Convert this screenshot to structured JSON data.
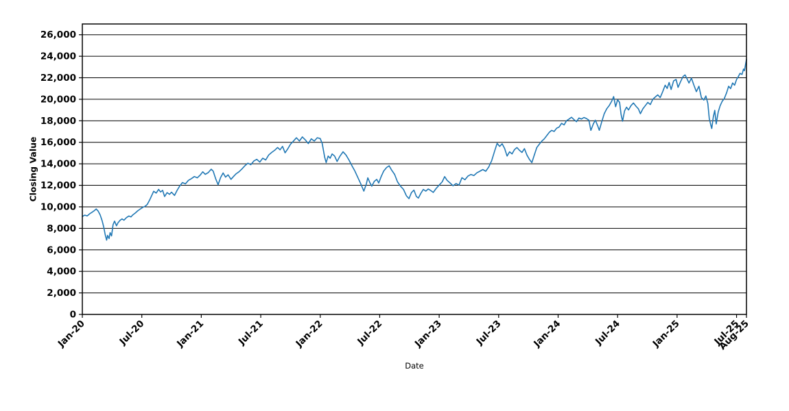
{
  "figure": {
    "background": "#ffffff",
    "text_color": "#000000",
    "grid_color": "#000000",
    "border_color": "#000000"
  },
  "chart_data": {
    "type": "line",
    "title": "",
    "xlabel": "Date",
    "ylabel": "Closing Value",
    "legend": "none",
    "grid": "horizontal-only",
    "line_color": "#1f77b4",
    "line_width": 1.6,
    "xlim_months_from_jan2020": [
      0,
      67
    ],
    "ylim": [
      0,
      27000
    ],
    "x_ticks": [
      {
        "m": 0,
        "label": "Jan-20"
      },
      {
        "m": 6,
        "label": "Jul-20"
      },
      {
        "m": 12,
        "label": "Jan-21"
      },
      {
        "m": 18,
        "label": "Jul-21"
      },
      {
        "m": 24,
        "label": "Jan-22"
      },
      {
        "m": 30,
        "label": "Jul-22"
      },
      {
        "m": 36,
        "label": "Jan-23"
      },
      {
        "m": 42,
        "label": "Jul-23"
      },
      {
        "m": 48,
        "label": "Jan-24"
      },
      {
        "m": 54,
        "label": "Jul-24"
      },
      {
        "m": 60,
        "label": "Jan-25"
      },
      {
        "m": 66,
        "label": "Jul-25"
      },
      {
        "m": 67,
        "label": "Aug-25"
      }
    ],
    "y_ticks": [
      {
        "v": 0,
        "label": "0"
      },
      {
        "v": 2000,
        "label": "2,000"
      },
      {
        "v": 4000,
        "label": "4,000"
      },
      {
        "v": 6000,
        "label": "6,000"
      },
      {
        "v": 8000,
        "label": "8,000"
      },
      {
        "v": 10000,
        "label": "10,000"
      },
      {
        "v": 12000,
        "label": "12,000"
      },
      {
        "v": 14000,
        "label": "14,000"
      },
      {
        "v": 16000,
        "label": "16,000"
      },
      {
        "v": 18000,
        "label": "18,000"
      },
      {
        "v": 20000,
        "label": "20,000"
      },
      {
        "v": 22000,
        "label": "22,000"
      },
      {
        "v": 24000,
        "label": "24,000"
      },
      {
        "v": 26000,
        "label": "26,000"
      }
    ],
    "series": [
      {
        "name": "Closing Value",
        "x_unit": "months since Jan-2020 (fractional = day of month)",
        "points": [
          [
            0,
            9100
          ],
          [
            0.25,
            9230
          ],
          [
            0.5,
            9160
          ],
          [
            0.75,
            9360
          ],
          [
            1,
            9510
          ],
          [
            1.2,
            9640
          ],
          [
            1.4,
            9800
          ],
          [
            1.6,
            9600
          ],
          [
            1.8,
            9250
          ],
          [
            2,
            8700
          ],
          [
            2.15,
            8150
          ],
          [
            2.3,
            7450
          ],
          [
            2.45,
            6900
          ],
          [
            2.55,
            7350
          ],
          [
            2.7,
            7050
          ],
          [
            2.8,
            7600
          ],
          [
            2.95,
            7300
          ],
          [
            3.1,
            8350
          ],
          [
            3.25,
            8670
          ],
          [
            3.45,
            8240
          ],
          [
            3.6,
            8520
          ],
          [
            3.8,
            8740
          ],
          [
            4,
            8880
          ],
          [
            4.2,
            8760
          ],
          [
            4.45,
            9000
          ],
          [
            4.7,
            9150
          ],
          [
            4.9,
            9060
          ],
          [
            5.1,
            9260
          ],
          [
            5.35,
            9430
          ],
          [
            5.6,
            9640
          ],
          [
            5.85,
            9800
          ],
          [
            6.1,
            9950
          ],
          [
            6.35,
            10060
          ],
          [
            6.55,
            10220
          ],
          [
            6.8,
            10650
          ],
          [
            7,
            11050
          ],
          [
            7.2,
            11450
          ],
          [
            7.45,
            11280
          ],
          [
            7.7,
            11620
          ],
          [
            7.9,
            11380
          ],
          [
            8.1,
            11540
          ],
          [
            8.3,
            10960
          ],
          [
            8.55,
            11320
          ],
          [
            8.8,
            11160
          ],
          [
            9,
            11360
          ],
          [
            9.3,
            11060
          ],
          [
            9.55,
            11520
          ],
          [
            9.8,
            11900
          ],
          [
            10.1,
            12260
          ],
          [
            10.4,
            12140
          ],
          [
            10.7,
            12460
          ],
          [
            11,
            12620
          ],
          [
            11.3,
            12820
          ],
          [
            11.6,
            12700
          ],
          [
            11.9,
            12960
          ],
          [
            12.15,
            13260
          ],
          [
            12.4,
            13020
          ],
          [
            12.7,
            13180
          ],
          [
            13,
            13500
          ],
          [
            13.2,
            13320
          ],
          [
            13.45,
            12620
          ],
          [
            13.7,
            12060
          ],
          [
            13.95,
            12720
          ],
          [
            14.2,
            13150
          ],
          [
            14.45,
            12760
          ],
          [
            14.7,
            12980
          ],
          [
            15,
            12560
          ],
          [
            15.25,
            12820
          ],
          [
            15.5,
            13060
          ],
          [
            15.8,
            13260
          ],
          [
            16.1,
            13520
          ],
          [
            16.4,
            13820
          ],
          [
            16.7,
            14060
          ],
          [
            17,
            13920
          ],
          [
            17.3,
            14260
          ],
          [
            17.6,
            14420
          ],
          [
            17.9,
            14160
          ],
          [
            18.2,
            14520
          ],
          [
            18.5,
            14360
          ],
          [
            18.8,
            14820
          ],
          [
            19.1,
            15060
          ],
          [
            19.4,
            15260
          ],
          [
            19.7,
            15520
          ],
          [
            19.95,
            15300
          ],
          [
            20.2,
            15620
          ],
          [
            20.45,
            15020
          ],
          [
            20.7,
            15360
          ],
          [
            21,
            15820
          ],
          [
            21.3,
            16120
          ],
          [
            21.6,
            16420
          ],
          [
            21.9,
            16120
          ],
          [
            22.2,
            16500
          ],
          [
            22.5,
            16220
          ],
          [
            22.8,
            15880
          ],
          [
            23.1,
            16320
          ],
          [
            23.4,
            16120
          ],
          [
            23.7,
            16420
          ],
          [
            24,
            16350
          ],
          [
            24.2,
            15900
          ],
          [
            24.45,
            14620
          ],
          [
            24.6,
            14120
          ],
          [
            24.8,
            14720
          ],
          [
            25,
            14520
          ],
          [
            25.2,
            14920
          ],
          [
            25.45,
            14720
          ],
          [
            25.7,
            14220
          ],
          [
            26,
            14720
          ],
          [
            26.3,
            15120
          ],
          [
            26.6,
            14820
          ],
          [
            26.9,
            14360
          ],
          [
            27.2,
            13820
          ],
          [
            27.5,
            13320
          ],
          [
            27.8,
            12720
          ],
          [
            28.1,
            12120
          ],
          [
            28.4,
            11460
          ],
          [
            28.65,
            12120
          ],
          [
            28.8,
            12700
          ],
          [
            29,
            12260
          ],
          [
            29.2,
            11920
          ],
          [
            29.45,
            12360
          ],
          [
            29.7,
            12560
          ],
          [
            29.9,
            12220
          ],
          [
            30.15,
            12820
          ],
          [
            30.4,
            13320
          ],
          [
            30.7,
            13660
          ],
          [
            30.95,
            13820
          ],
          [
            31.2,
            13420
          ],
          [
            31.5,
            13020
          ],
          [
            31.8,
            12320
          ],
          [
            32.1,
            11920
          ],
          [
            32.4,
            11620
          ],
          [
            32.7,
            11020
          ],
          [
            32.95,
            10760
          ],
          [
            33.2,
            11320
          ],
          [
            33.45,
            11560
          ],
          [
            33.7,
            10960
          ],
          [
            33.9,
            10820
          ],
          [
            34.15,
            11260
          ],
          [
            34.4,
            11620
          ],
          [
            34.65,
            11460
          ],
          [
            34.9,
            11660
          ],
          [
            35.15,
            11520
          ],
          [
            35.4,
            11340
          ],
          [
            35.7,
            11720
          ],
          [
            36,
            12020
          ],
          [
            36.3,
            12320
          ],
          [
            36.55,
            12810
          ],
          [
            36.8,
            12460
          ],
          [
            37.1,
            12220
          ],
          [
            37.4,
            11960
          ],
          [
            37.7,
            12160
          ],
          [
            38,
            12020
          ],
          [
            38.3,
            12710
          ],
          [
            38.6,
            12520
          ],
          [
            38.9,
            12860
          ],
          [
            39.2,
            13010
          ],
          [
            39.5,
            12910
          ],
          [
            39.8,
            13160
          ],
          [
            40.1,
            13310
          ],
          [
            40.4,
            13470
          ],
          [
            40.7,
            13310
          ],
          [
            41,
            13710
          ],
          [
            41.3,
            14300
          ],
          [
            41.6,
            15200
          ],
          [
            41.85,
            15900
          ],
          [
            42.1,
            15620
          ],
          [
            42.35,
            15860
          ],
          [
            42.6,
            15420
          ],
          [
            42.85,
            14720
          ],
          [
            43.1,
            15120
          ],
          [
            43.35,
            14920
          ],
          [
            43.6,
            15320
          ],
          [
            43.85,
            15510
          ],
          [
            44.1,
            15260
          ],
          [
            44.35,
            15060
          ],
          [
            44.6,
            15410
          ],
          [
            44.85,
            14820
          ],
          [
            45.1,
            14420
          ],
          [
            45.35,
            14110
          ],
          [
            45.6,
            14820
          ],
          [
            45.85,
            15510
          ],
          [
            46.1,
            15820
          ],
          [
            46.35,
            16110
          ],
          [
            46.6,
            16320
          ],
          [
            46.85,
            16620
          ],
          [
            47.1,
            16920
          ],
          [
            47.35,
            17110
          ],
          [
            47.6,
            17010
          ],
          [
            47.85,
            17310
          ],
          [
            48.1,
            17420
          ],
          [
            48.35,
            17760
          ],
          [
            48.6,
            17620
          ],
          [
            48.85,
            18010
          ],
          [
            49.1,
            18160
          ],
          [
            49.35,
            18330
          ],
          [
            49.6,
            18110
          ],
          [
            49.85,
            17910
          ],
          [
            50.1,
            18260
          ],
          [
            50.35,
            18160
          ],
          [
            50.6,
            18310
          ],
          [
            50.85,
            18210
          ],
          [
            51.1,
            18060
          ],
          [
            51.3,
            17110
          ],
          [
            51.55,
            17710
          ],
          [
            51.75,
            18060
          ],
          [
            52,
            17510
          ],
          [
            52.15,
            17120
          ],
          [
            52.4,
            17910
          ],
          [
            52.65,
            18660
          ],
          [
            52.9,
            19110
          ],
          [
            53.15,
            19410
          ],
          [
            53.4,
            19810
          ],
          [
            53.6,
            20250
          ],
          [
            53.8,
            19310
          ],
          [
            54,
            19960
          ],
          [
            54.2,
            19710
          ],
          [
            54.35,
            18610
          ],
          [
            54.5,
            17960
          ],
          [
            54.7,
            18910
          ],
          [
            54.9,
            19260
          ],
          [
            55.1,
            19010
          ],
          [
            55.35,
            19410
          ],
          [
            55.6,
            19660
          ],
          [
            55.85,
            19360
          ],
          [
            56.1,
            19110
          ],
          [
            56.3,
            18660
          ],
          [
            56.55,
            19110
          ],
          [
            56.8,
            19410
          ],
          [
            57.05,
            19710
          ],
          [
            57.3,
            19510
          ],
          [
            57.55,
            20010
          ],
          [
            57.8,
            20210
          ],
          [
            58.05,
            20410
          ],
          [
            58.3,
            20160
          ],
          [
            58.55,
            20710
          ],
          [
            58.8,
            21310
          ],
          [
            59,
            21010
          ],
          [
            59.2,
            21560
          ],
          [
            59.4,
            20910
          ],
          [
            59.65,
            21710
          ],
          [
            59.9,
            21840
          ],
          [
            60.1,
            21110
          ],
          [
            60.35,
            21630
          ],
          [
            60.6,
            22110
          ],
          [
            60.8,
            22270
          ],
          [
            61,
            21910
          ],
          [
            61.2,
            21510
          ],
          [
            61.45,
            21960
          ],
          [
            61.7,
            21310
          ],
          [
            61.95,
            20710
          ],
          [
            62.2,
            21210
          ],
          [
            62.45,
            20160
          ],
          [
            62.7,
            19930
          ],
          [
            62.9,
            20310
          ],
          [
            63.1,
            19610
          ],
          [
            63.25,
            18210
          ],
          [
            63.4,
            17610
          ],
          [
            63.5,
            17280
          ],
          [
            63.65,
            18330
          ],
          [
            63.8,
            18970
          ],
          [
            63.95,
            17710
          ],
          [
            64.15,
            18810
          ],
          [
            64.35,
            19410
          ],
          [
            64.55,
            19810
          ],
          [
            64.75,
            20040
          ],
          [
            65,
            20610
          ],
          [
            65.2,
            21210
          ],
          [
            65.4,
            20990
          ],
          [
            65.6,
            21510
          ],
          [
            65.8,
            21310
          ],
          [
            66,
            21840
          ],
          [
            66.15,
            22060
          ],
          [
            66.35,
            22410
          ],
          [
            66.55,
            22310
          ],
          [
            66.7,
            22810
          ],
          [
            66.8,
            22660
          ],
          [
            66.9,
            23210
          ],
          [
            67,
            23700
          ]
        ]
      }
    ]
  }
}
